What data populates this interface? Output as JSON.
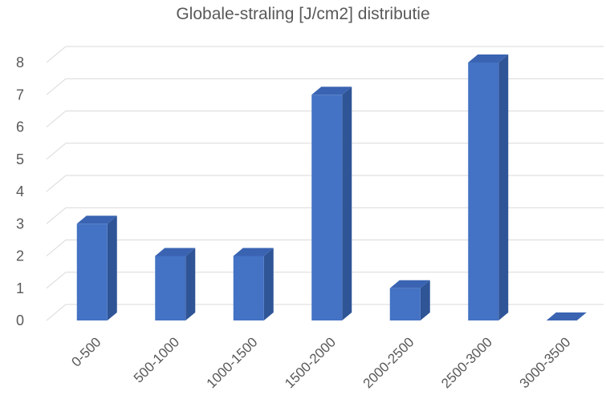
{
  "chart_data": {
    "type": "bar",
    "title": "Globale-straling [J/cm2] distributie",
    "xlabel": "",
    "ylabel": "",
    "categories": [
      "0-500",
      "500-1000",
      "1000-1500",
      "1500-2000",
      "2000-2500",
      "2500-3000",
      "3000-3500"
    ],
    "values": [
      3,
      2,
      2,
      7,
      1,
      8,
      0
    ],
    "ylim": [
      0,
      8
    ],
    "yticks": [
      0,
      1,
      2,
      3,
      4,
      5,
      6,
      7,
      8
    ],
    "grid": true,
    "legend": "none",
    "style": "3d-column",
    "colors": {
      "bar_front": "#4472C4",
      "bar_side": "#2F5597",
      "bar_top": "#3A64B2",
      "gridline": "#D9D9D9",
      "text": "#595959"
    }
  }
}
